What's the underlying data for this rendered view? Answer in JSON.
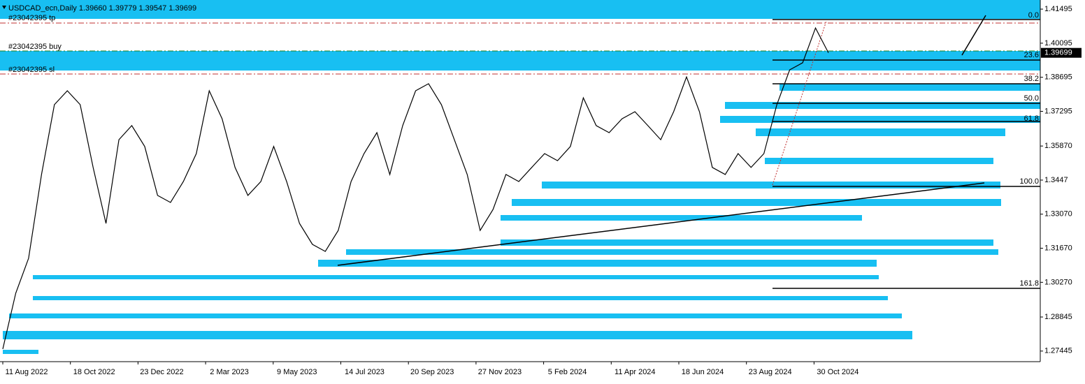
{
  "chart_data": {
    "type": "line",
    "title": "USDCAD_ecn,Daily  1.39660 1.39779 1.39547 1.39699",
    "color": "#000000",
    "values": [
      1.2753,
      1.2982,
      1.3126,
      1.347,
      1.3757,
      1.3814,
      1.3757,
      1.3499,
      1.3269,
      1.3613,
      1.3671,
      1.3585,
      1.3384,
      1.3355,
      1.3441,
      1.3556,
      1.3814,
      1.3699,
      1.3499,
      1.3384,
      1.3441,
      1.3585,
      1.3441,
      1.3269,
      1.3183,
      1.3154,
      1.324,
      1.3441,
      1.3556,
      1.3642,
      1.347,
      1.3671,
      1.3814,
      1.3843,
      1.3757,
      1.3613,
      1.347,
      1.324,
      1.3326,
      1.347,
      1.3441,
      1.3499,
      1.3556,
      1.3527,
      1.3585,
      1.3785,
      1.3671,
      1.3642,
      1.3699,
      1.3728,
      1.3671,
      1.3613,
      1.3728,
      1.3871,
      1.3728,
      1.3499,
      1.347,
      1.3556,
      1.3499,
      1.3556,
      1.3757,
      1.39,
      1.3929,
      1.4072,
      1.397
    ],
    "x_labels": [
      "11 Aug 2022",
      "18 Oct 2022",
      "23 Dec 2022",
      "2 Mar 2023",
      "9 May 2023",
      "14 Jul 2023",
      "20 Sep 2023",
      "27 Nov 2023",
      "5 Feb 2024",
      "11 Apr 2024",
      "18 Jun 2024",
      "23 Aug 2024",
      "30 Oct 2024"
    ],
    "ylim": [
      1.2701,
      1.4187
    ],
    "yticks": [
      1.41495,
      1.40095,
      1.38695,
      1.37295,
      {
        "value": 1.3587,
        "label": "1.35870"
      },
      1.3447,
      {
        "value": 1.3307,
        "label": "1.33070"
      },
      {
        "value": 1.3167,
        "label": "1.31670"
      },
      {
        "value": 1.3027,
        "label": "1.30270"
      },
      1.28845,
      1.27445
    ],
    "current_price": 1.39699,
    "fib_labels": [
      "0.0",
      "23.6",
      "38.2",
      "50.0",
      "61.8",
      "100.0",
      "161.8"
    ],
    "order_labels": [
      "#23042395 tp",
      "#23042395 buy",
      "#23042395 sl"
    ]
  }
}
